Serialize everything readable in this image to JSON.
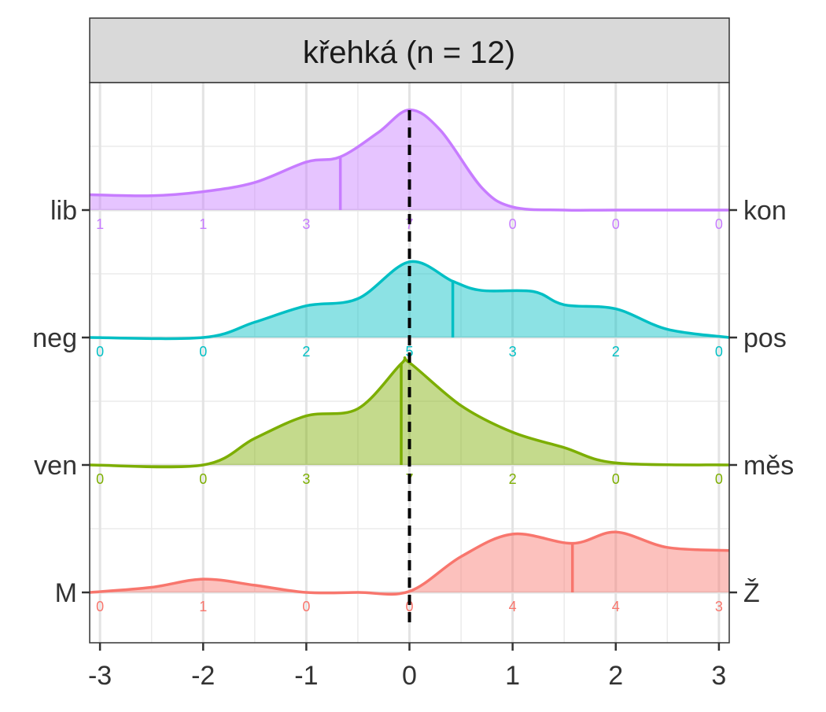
{
  "chart_data": {
    "type": "area",
    "title": "křehká (n = 12)",
    "xlabel": "",
    "ylabel": "",
    "xlim": [
      -3.1,
      3.1
    ],
    "x_ticks": [
      -3,
      -2,
      -1,
      0,
      1,
      2,
      3
    ],
    "x_tick_labels": [
      "-3",
      "-2",
      "-1",
      "0",
      "1",
      "2",
      "3"
    ],
    "grid": true,
    "reference_line": {
      "x": 0,
      "style": "dashed",
      "color": "#000000"
    },
    "series": [
      {
        "left_label": "lib",
        "right_label": "kon",
        "color": "#C77CFF",
        "counts": [
          1,
          1,
          3,
          7,
          0,
          0,
          0
        ],
        "mean": -0.67,
        "density": [
          [
            -3.1,
            0.15
          ],
          [
            -2.5,
            0.14
          ],
          [
            -2.0,
            0.18
          ],
          [
            -1.5,
            0.27
          ],
          [
            -1.0,
            0.47
          ],
          [
            -0.67,
            0.52
          ],
          [
            -0.3,
            0.76
          ],
          [
            0,
            0.98
          ],
          [
            0.3,
            0.78
          ],
          [
            0.7,
            0.22
          ],
          [
            1.0,
            0.03
          ],
          [
            1.5,
            0.0
          ],
          [
            2.0,
            0.0
          ],
          [
            3.1,
            0.0
          ]
        ]
      },
      {
        "left_label": "neg",
        "right_label": "pos",
        "color": "#00BFC4",
        "counts": [
          0,
          0,
          2,
          5,
          3,
          2,
          0
        ],
        "mean": 0.42,
        "density": [
          [
            -3.1,
            0.0
          ],
          [
            -2.0,
            0.0
          ],
          [
            -1.5,
            0.15
          ],
          [
            -1.0,
            0.31
          ],
          [
            -0.5,
            0.38
          ],
          [
            0,
            0.74
          ],
          [
            0.42,
            0.55
          ],
          [
            0.7,
            0.46
          ],
          [
            1.2,
            0.45
          ],
          [
            1.5,
            0.32
          ],
          [
            2.0,
            0.28
          ],
          [
            2.5,
            0.08
          ],
          [
            3.1,
            0.0
          ]
        ]
      },
      {
        "left_label": "ven",
        "right_label": "měs",
        "color": "#7CAE00",
        "counts": [
          0,
          0,
          3,
          7,
          2,
          0,
          0
        ],
        "mean": -0.08,
        "density": [
          [
            -3.1,
            0.0
          ],
          [
            -2.0,
            0.0
          ],
          [
            -1.5,
            0.26
          ],
          [
            -1.0,
            0.48
          ],
          [
            -0.5,
            0.55
          ],
          [
            -0.08,
            0.99
          ],
          [
            0,
            1.0
          ],
          [
            0.5,
            0.58
          ],
          [
            1.0,
            0.32
          ],
          [
            1.5,
            0.17
          ],
          [
            2.0,
            0.02
          ],
          [
            3.1,
            0.0
          ]
        ]
      },
      {
        "left_label": "M",
        "right_label": "Ž",
        "color": "#F8766D",
        "counts": [
          0,
          1,
          0,
          0,
          4,
          4,
          3
        ],
        "mean": 1.58,
        "density": [
          [
            -3.1,
            0.0
          ],
          [
            -2.5,
            0.05
          ],
          [
            -2.0,
            0.13
          ],
          [
            -1.5,
            0.07
          ],
          [
            -1.0,
            0.0
          ],
          [
            -0.5,
            0.0
          ],
          [
            0,
            0.01
          ],
          [
            0.5,
            0.35
          ],
          [
            1.0,
            0.57
          ],
          [
            1.58,
            0.48
          ],
          [
            2.0,
            0.59
          ],
          [
            2.5,
            0.44
          ],
          [
            3.1,
            0.41
          ]
        ]
      }
    ]
  }
}
